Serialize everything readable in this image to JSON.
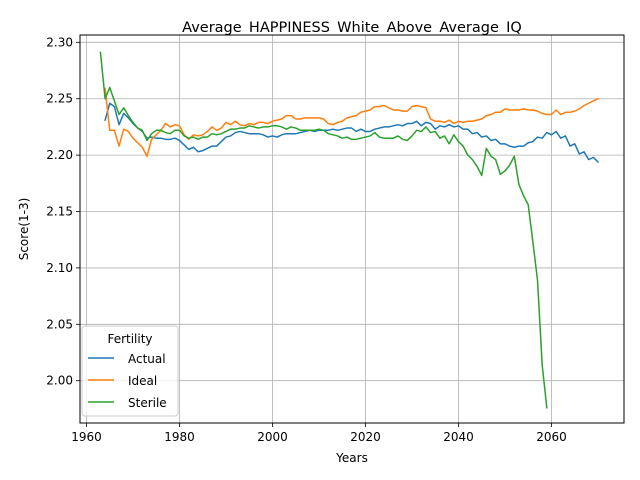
{
  "chart_data": {
    "type": "line",
    "title": "Average_HAPPINESS_White_Above_Average_IQ",
    "xlabel": "Years",
    "ylabel": "Score(1-3)",
    "xlim": [
      1958.6,
      2075.6
    ],
    "ylim": [
      1.9625,
      2.3065
    ],
    "xticks": [
      1960,
      1980,
      2000,
      2020,
      2040,
      2060
    ],
    "yticks": [
      2.0,
      2.05,
      2.1,
      2.15,
      2.2,
      2.25,
      2.3
    ],
    "ytick_labels": [
      "2.00",
      "2.05",
      "2.10",
      "2.15",
      "2.20",
      "2.25",
      "2.30"
    ],
    "grid": true,
    "legend": {
      "title": "Fertility",
      "placement": "lower-left"
    },
    "series": [
      {
        "name": "Actual",
        "color": "#1f77b4",
        "x": [
          1964,
          1965,
          1966,
          1967,
          1968,
          1969,
          1970,
          1971,
          1972,
          1973,
          1974,
          1975,
          1976,
          1977,
          1978,
          1979,
          1980,
          1981,
          1982,
          1983,
          1984,
          1985,
          1986,
          1987,
          1988,
          1989,
          1990,
          1991,
          1992,
          1993,
          1994,
          1995,
          1996,
          1997,
          1998,
          1999,
          2000,
          2001,
          2002,
          2003,
          2004,
          2005,
          2006,
          2007,
          2008,
          2009,
          2010,
          2011,
          2012,
          2013,
          2014,
          2015,
          2016,
          2017,
          2018,
          2019,
          2020,
          2021,
          2022,
          2023,
          2024,
          2025,
          2026,
          2027,
          2028,
          2029,
          2030,
          2031,
          2032,
          2033,
          2034,
          2035,
          2036,
          2037,
          2038,
          2039,
          2040,
          2041,
          2042,
          2043,
          2044,
          2045,
          2046,
          2047,
          2048,
          2049,
          2050,
          2051,
          2052,
          2053,
          2054,
          2055,
          2056,
          2057,
          2058,
          2059,
          2060,
          2061,
          2062,
          2063,
          2064,
          2065,
          2066,
          2067,
          2068,
          2069,
          2070
        ],
        "values": [
          2.231,
          2.246,
          2.243,
          2.227,
          2.237,
          2.233,
          2.228,
          2.224,
          2.221,
          2.215,
          2.216,
          2.215,
          2.215,
          2.214,
          2.214,
          2.215,
          2.213,
          2.209,
          2.205,
          2.207,
          2.203,
          2.204,
          2.206,
          2.208,
          2.208,
          2.212,
          2.216,
          2.217,
          2.22,
          2.221,
          2.22,
          2.219,
          2.219,
          2.219,
          2.218,
          2.216,
          2.217,
          2.216,
          2.218,
          2.219,
          2.219,
          2.219,
          2.22,
          2.221,
          2.222,
          2.221,
          2.222,
          2.222,
          2.222,
          2.223,
          2.222,
          2.223,
          2.224,
          2.224,
          2.221,
          2.223,
          2.221,
          2.221,
          2.223,
          2.224,
          2.225,
          2.225,
          2.226,
          2.227,
          2.226,
          2.228,
          2.228,
          2.23,
          2.226,
          2.229,
          2.228,
          2.223,
          2.226,
          2.225,
          2.227,
          2.225,
          2.226,
          2.223,
          2.223,
          2.219,
          2.22,
          2.216,
          2.217,
          2.213,
          2.214,
          2.21,
          2.21,
          2.208,
          2.207,
          2.208,
          2.208,
          2.211,
          2.212,
          2.216,
          2.215,
          2.22,
          2.218,
          2.221,
          2.215,
          2.217,
          2.208,
          2.21,
          2.201,
          2.203,
          2.196,
          2.198,
          2.194
        ]
      },
      {
        "name": "Ideal",
        "color": "#ff7f0e",
        "x": [
          1964,
          1965,
          1966,
          1967,
          1968,
          1969,
          1970,
          1971,
          1972,
          1973,
          1974,
          1975,
          1976,
          1977,
          1978,
          1979,
          1980,
          1981,
          1982,
          1983,
          1984,
          1985,
          1986,
          1987,
          1988,
          1989,
          1990,
          1991,
          1992,
          1993,
          1994,
          1995,
          1996,
          1997,
          1998,
          1999,
          2000,
          2001,
          2002,
          2003,
          2004,
          2005,
          2006,
          2007,
          2008,
          2009,
          2010,
          2011,
          2012,
          2013,
          2014,
          2015,
          2016,
          2017,
          2018,
          2019,
          2020,
          2021,
          2022,
          2023,
          2024,
          2025,
          2026,
          2027,
          2028,
          2029,
          2030,
          2031,
          2032,
          2033,
          2034,
          2035,
          2036,
          2037,
          2038,
          2039,
          2040,
          2041,
          2042,
          2043,
          2044,
          2045,
          2046,
          2047,
          2048,
          2049,
          2050,
          2051,
          2052,
          2053,
          2054,
          2055,
          2056,
          2057,
          2058,
          2059,
          2060,
          2061,
          2062,
          2063,
          2064,
          2065,
          2066,
          2067,
          2068,
          2069,
          2070
        ],
        "values": [
          2.259,
          2.222,
          2.222,
          2.208,
          2.223,
          2.221,
          2.215,
          2.211,
          2.207,
          2.199,
          2.214,
          2.218,
          2.222,
          2.228,
          2.225,
          2.227,
          2.226,
          2.218,
          2.214,
          2.218,
          2.217,
          2.218,
          2.221,
          2.225,
          2.222,
          2.224,
          2.229,
          2.227,
          2.23,
          2.227,
          2.226,
          2.228,
          2.227,
          2.229,
          2.229,
          2.228,
          2.23,
          2.231,
          2.232,
          2.235,
          2.235,
          2.232,
          2.232,
          2.233,
          2.233,
          2.233,
          2.233,
          2.232,
          2.228,
          2.227,
          2.229,
          2.23,
          2.233,
          2.234,
          2.235,
          2.238,
          2.239,
          2.24,
          2.243,
          2.243,
          2.244,
          2.242,
          2.24,
          2.24,
          2.239,
          2.239,
          2.243,
          2.244,
          2.243,
          2.242,
          2.232,
          2.23,
          2.23,
          2.229,
          2.231,
          2.228,
          2.23,
          2.229,
          2.23,
          2.23,
          2.231,
          2.232,
          2.235,
          2.236,
          2.238,
          2.238,
          2.241,
          2.24,
          2.24,
          2.24,
          2.241,
          2.24,
          2.24,
          2.239,
          2.237,
          2.236,
          2.236,
          2.24,
          2.236,
          2.238,
          2.238,
          2.239,
          2.241,
          2.244,
          2.246,
          2.248,
          2.25
        ]
      },
      {
        "name": "Sterile",
        "color": "#2ca02c",
        "x": [
          1963,
          1964,
          1965,
          1966,
          1967,
          1968,
          1969,
          1970,
          1971,
          1972,
          1973,
          1974,
          1975,
          1976,
          1977,
          1978,
          1979,
          1980,
          1981,
          1982,
          1983,
          1984,
          1985,
          1986,
          1987,
          1988,
          1989,
          1990,
          1991,
          1992,
          1993,
          1994,
          1995,
          1996,
          1997,
          1998,
          1999,
          2000,
          2001,
          2002,
          2003,
          2004,
          2005,
          2006,
          2007,
          2008,
          2009,
          2010,
          2011,
          2012,
          2013,
          2014,
          2015,
          2016,
          2017,
          2018,
          2019,
          2020,
          2021,
          2022,
          2023,
          2024,
          2025,
          2026,
          2027,
          2028,
          2029,
          2030,
          2031,
          2032,
          2033,
          2034,
          2035,
          2036,
          2037,
          2038,
          2039,
          2040,
          2041,
          2042,
          2043,
          2044,
          2045,
          2046,
          2047,
          2048,
          2049,
          2050,
          2051,
          2052,
          2053,
          2054,
          2055,
          2056,
          2057,
          2058,
          2059
        ],
        "values": [
          2.291,
          2.25,
          2.26,
          2.248,
          2.236,
          2.242,
          2.235,
          2.229,
          2.224,
          2.222,
          2.213,
          2.219,
          2.222,
          2.222,
          2.22,
          2.219,
          2.222,
          2.222,
          2.217,
          2.215,
          2.216,
          2.214,
          2.216,
          2.216,
          2.219,
          2.218,
          2.219,
          2.221,
          2.223,
          2.223,
          2.224,
          2.224,
          2.226,
          2.225,
          2.224,
          2.225,
          2.225,
          2.226,
          2.226,
          2.225,
          2.223,
          2.225,
          2.224,
          2.222,
          2.222,
          2.222,
          2.222,
          2.223,
          2.222,
          2.219,
          2.218,
          2.217,
          2.215,
          2.216,
          2.214,
          2.214,
          2.215,
          2.216,
          2.217,
          2.22,
          2.216,
          2.215,
          2.215,
          2.215,
          2.217,
          2.214,
          2.213,
          2.217,
          2.222,
          2.221,
          2.225,
          2.22,
          2.221,
          2.215,
          2.217,
          2.21,
          2.218,
          2.212,
          2.208,
          2.2,
          2.196,
          2.19,
          2.182,
          2.206,
          2.199,
          2.196,
          2.183,
          2.186,
          2.191,
          2.199,
          2.174,
          2.164,
          2.156,
          2.123,
          2.089,
          2.014,
          1.976
        ]
      }
    ]
  }
}
